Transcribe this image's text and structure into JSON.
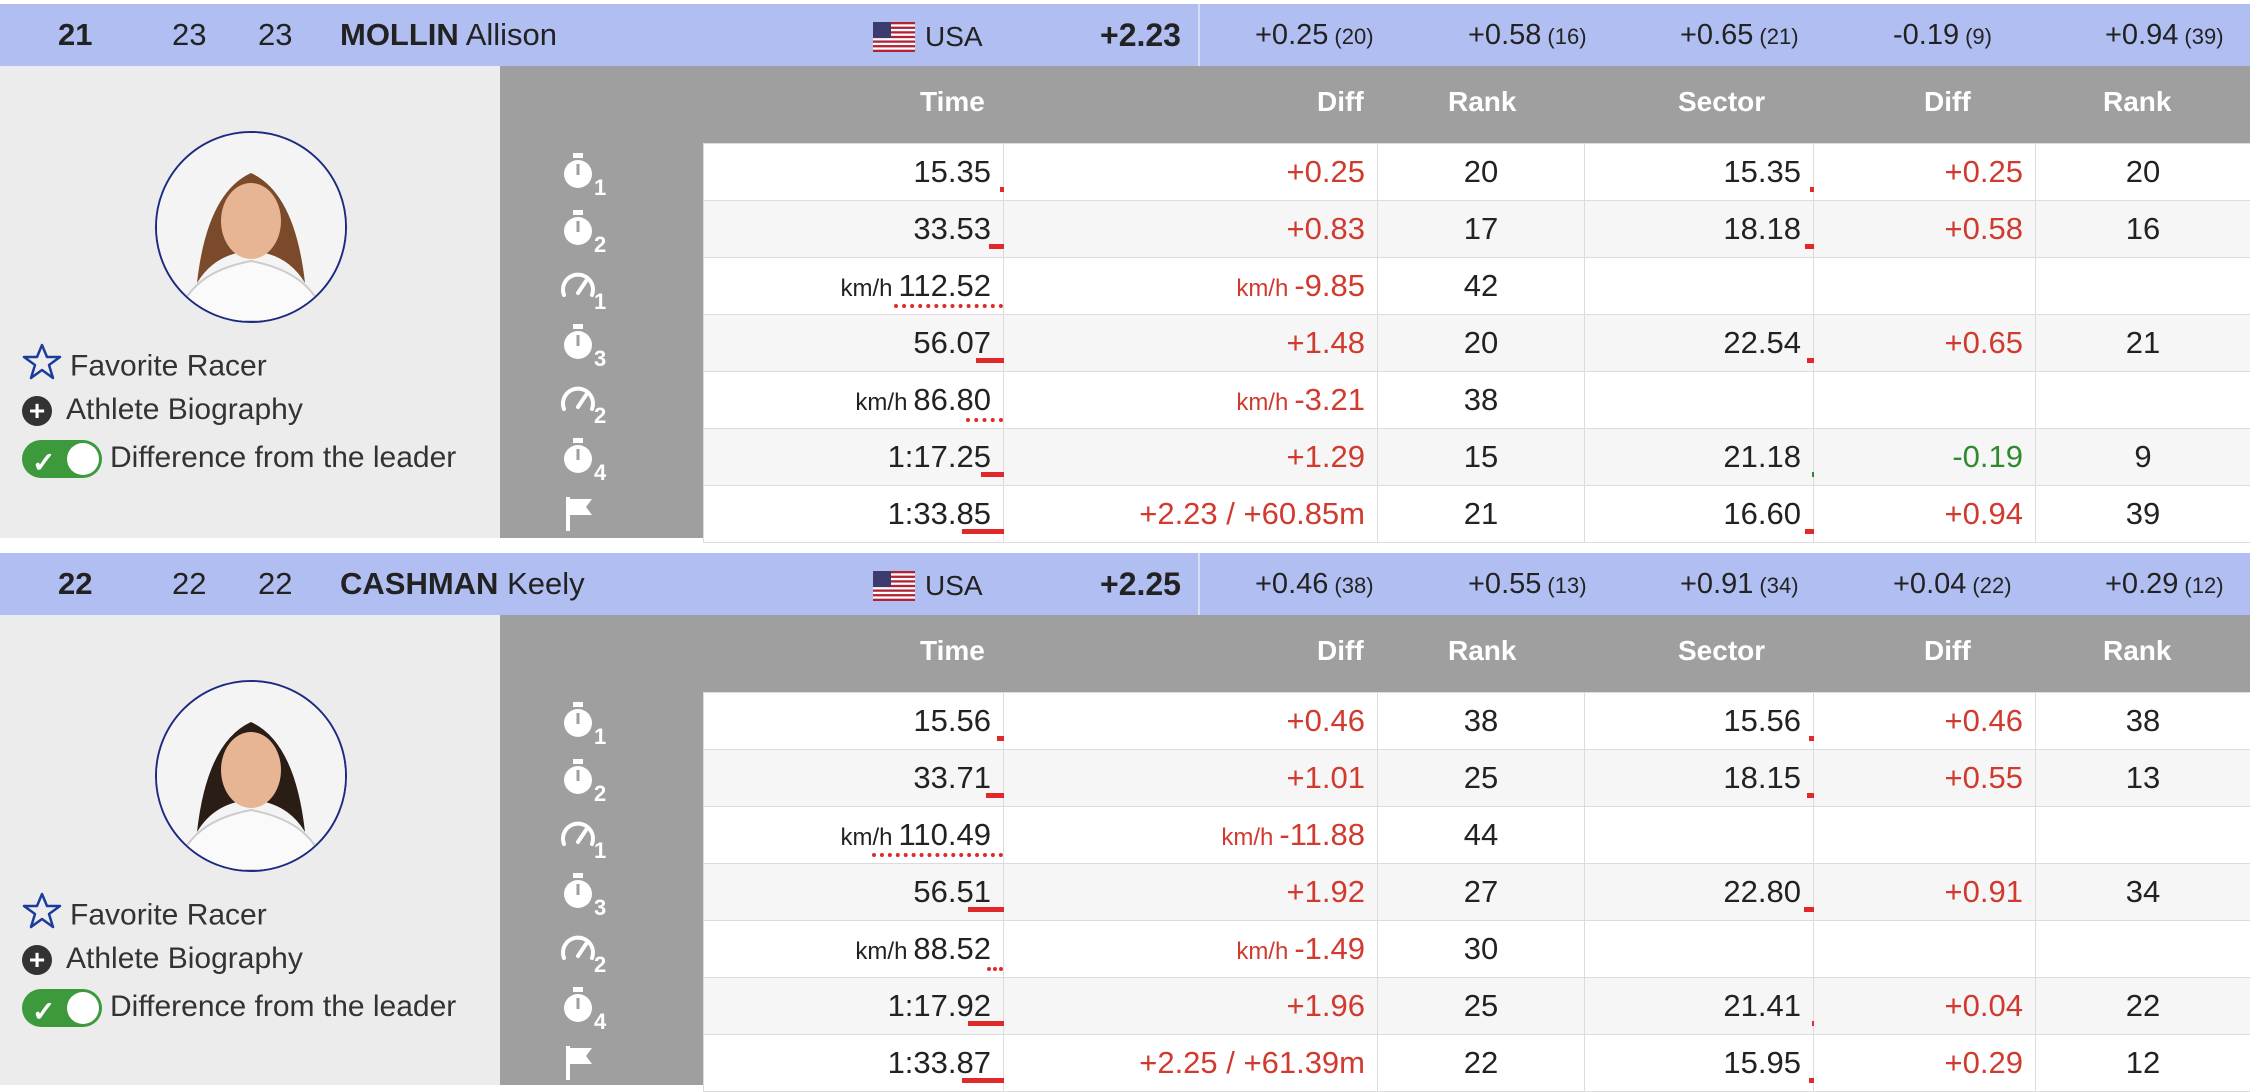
{
  "colors": {
    "header_bg": "#b1bef1",
    "grid_bg": "#9f9f9f",
    "diff_red": "#d03a2f",
    "diff_green": "#2e8b2e",
    "toggle_on": "#3c9a3c"
  },
  "options": {
    "favorite": "Favorite Racer",
    "biography": "Athlete Biography",
    "diff_leader": "Difference from the leader"
  },
  "columns": {
    "time": "Time",
    "diff": "Diff",
    "rank": "Rank",
    "sector": "Sector",
    "sdiff": "Diff",
    "srank": "Rank"
  },
  "athletes": [
    {
      "rank": "21",
      "a": "23",
      "b": "23",
      "last": "MOLLIN",
      "first": "Allison",
      "nation": "USA",
      "total_diff": "+2.23",
      "splits": [
        {
          "v": "+0.25",
          "r": "(20)"
        },
        {
          "v": "+0.58",
          "r": "(16)"
        },
        {
          "v": "+0.65",
          "r": "(21)"
        },
        {
          "v": "-0.19",
          "r": "(9)"
        },
        {
          "v": "+0.94",
          "r": "(39)"
        }
      ],
      "rows": [
        {
          "icon": "timer",
          "n": "1",
          "unit": "",
          "time": "15.35",
          "diff_unit": "",
          "diff": "+0.25",
          "diff_color": "red",
          "rank": "20",
          "sector": "15.35",
          "sdiff": "+0.25",
          "sdiff_color": "red",
          "srank": "20",
          "bar": 0.03,
          "sbar": 0.03
        },
        {
          "icon": "timer",
          "n": "2",
          "unit": "",
          "time": "33.53",
          "diff_unit": "",
          "diff": "+0.83",
          "diff_color": "red",
          "rank": "17",
          "sector": "18.18",
          "sdiff": "+0.58",
          "sdiff_color": "red",
          "srank": "16",
          "bar": 0.1,
          "sbar": 0.06
        },
        {
          "icon": "speed",
          "n": "1",
          "unit": "km/h",
          "time": "112.52",
          "diff_unit": "km/h",
          "diff": "-9.85",
          "diff_color": "red",
          "rank": "42",
          "sector": "",
          "sdiff": "",
          "sdiff_color": "red",
          "srank": "",
          "bar": 0.68,
          "sbar": 0
        },
        {
          "icon": "timer",
          "n": "3",
          "unit": "",
          "time": "56.07",
          "diff_unit": "",
          "diff": "+1.48",
          "diff_color": "red",
          "rank": "20",
          "sector": "22.54",
          "sdiff": "+0.65",
          "sdiff_color": "red",
          "srank": "21",
          "bar": 0.18,
          "sbar": 0.05
        },
        {
          "icon": "speed",
          "n": "2",
          "unit": "km/h",
          "time": "86.80",
          "diff_unit": "km/h",
          "diff": "-3.21",
          "diff_color": "red",
          "rank": "38",
          "sector": "",
          "sdiff": "",
          "sdiff_color": "red",
          "srank": "",
          "bar": 0.23,
          "sbar": 0
        },
        {
          "icon": "timer",
          "n": "4",
          "unit": "",
          "time": "1:17.25",
          "diff_unit": "",
          "diff": "+1.29",
          "diff_color": "red",
          "rank": "15",
          "sector": "21.18",
          "sdiff": "-0.19",
          "sdiff_color": "green",
          "srank": "9",
          "bar": 0.15,
          "sbar": 0.02
        },
        {
          "icon": "flag",
          "n": "",
          "unit": "",
          "time": "1:33.85",
          "diff_unit": "",
          "diff": "+2.23 / +60.85m",
          "diff_color": "red",
          "rank": "21",
          "sector": "16.60",
          "sdiff": "+0.94",
          "sdiff_color": "red",
          "srank": "39",
          "bar": 0.27,
          "sbar": 0.06
        }
      ]
    },
    {
      "rank": "22",
      "a": "22",
      "b": "22",
      "last": "CASHMAN",
      "first": "Keely",
      "nation": "USA",
      "total_diff": "+2.25",
      "splits": [
        {
          "v": "+0.46",
          "r": "(38)"
        },
        {
          "v": "+0.55",
          "r": "(13)"
        },
        {
          "v": "+0.91",
          "r": "(34)"
        },
        {
          "v": "+0.04",
          "r": "(22)"
        },
        {
          "v": "+0.29",
          "r": "(12)"
        }
      ],
      "rows": [
        {
          "icon": "timer",
          "n": "1",
          "unit": "",
          "time": "15.56",
          "diff_unit": "",
          "diff": "+0.46",
          "diff_color": "red",
          "rank": "38",
          "sector": "15.56",
          "sdiff": "+0.46",
          "sdiff_color": "red",
          "srank": "38",
          "bar": 0.05,
          "sbar": 0.04
        },
        {
          "icon": "timer",
          "n": "2",
          "unit": "",
          "time": "33.71",
          "diff_unit": "",
          "diff": "+1.01",
          "diff_color": "red",
          "rank": "25",
          "sector": "18.15",
          "sdiff": "+0.55",
          "sdiff_color": "red",
          "srank": "13",
          "bar": 0.12,
          "sbar": 0.05
        },
        {
          "icon": "speed",
          "n": "1",
          "unit": "km/h",
          "time": "110.49",
          "diff_unit": "km/h",
          "diff": "-11.88",
          "diff_color": "red",
          "rank": "44",
          "sector": "",
          "sdiff": "",
          "sdiff_color": "red",
          "srank": "",
          "bar": 0.82,
          "sbar": 0
        },
        {
          "icon": "timer",
          "n": "3",
          "unit": "",
          "time": "56.51",
          "diff_unit": "",
          "diff": "+1.92",
          "diff_color": "red",
          "rank": "27",
          "sector": "22.80",
          "sdiff": "+0.91",
          "sdiff_color": "red",
          "srank": "34",
          "bar": 0.23,
          "sbar": 0.07
        },
        {
          "icon": "speed",
          "n": "2",
          "unit": "km/h",
          "time": "88.52",
          "diff_unit": "km/h",
          "diff": "-1.49",
          "diff_color": "red",
          "rank": "30",
          "sector": "",
          "sdiff": "",
          "sdiff_color": "red",
          "srank": "",
          "bar": 0.1,
          "sbar": 0
        },
        {
          "icon": "timer",
          "n": "4",
          "unit": "",
          "time": "1:17.92",
          "diff_unit": "",
          "diff": "+1.96",
          "diff_color": "red",
          "rank": "25",
          "sector": "21.41",
          "sdiff": "+0.04",
          "sdiff_color": "red",
          "srank": "22",
          "bar": 0.23,
          "sbar": 0.01
        },
        {
          "icon": "flag",
          "n": "",
          "unit": "",
          "time": "1:33.87",
          "diff_unit": "",
          "diff": "+2.25 / +61.39m",
          "diff_color": "red",
          "rank": "22",
          "sector": "15.95",
          "sdiff": "+0.29",
          "sdiff_color": "red",
          "srank": "12",
          "bar": 0.27,
          "sbar": 0.04
        }
      ]
    }
  ]
}
